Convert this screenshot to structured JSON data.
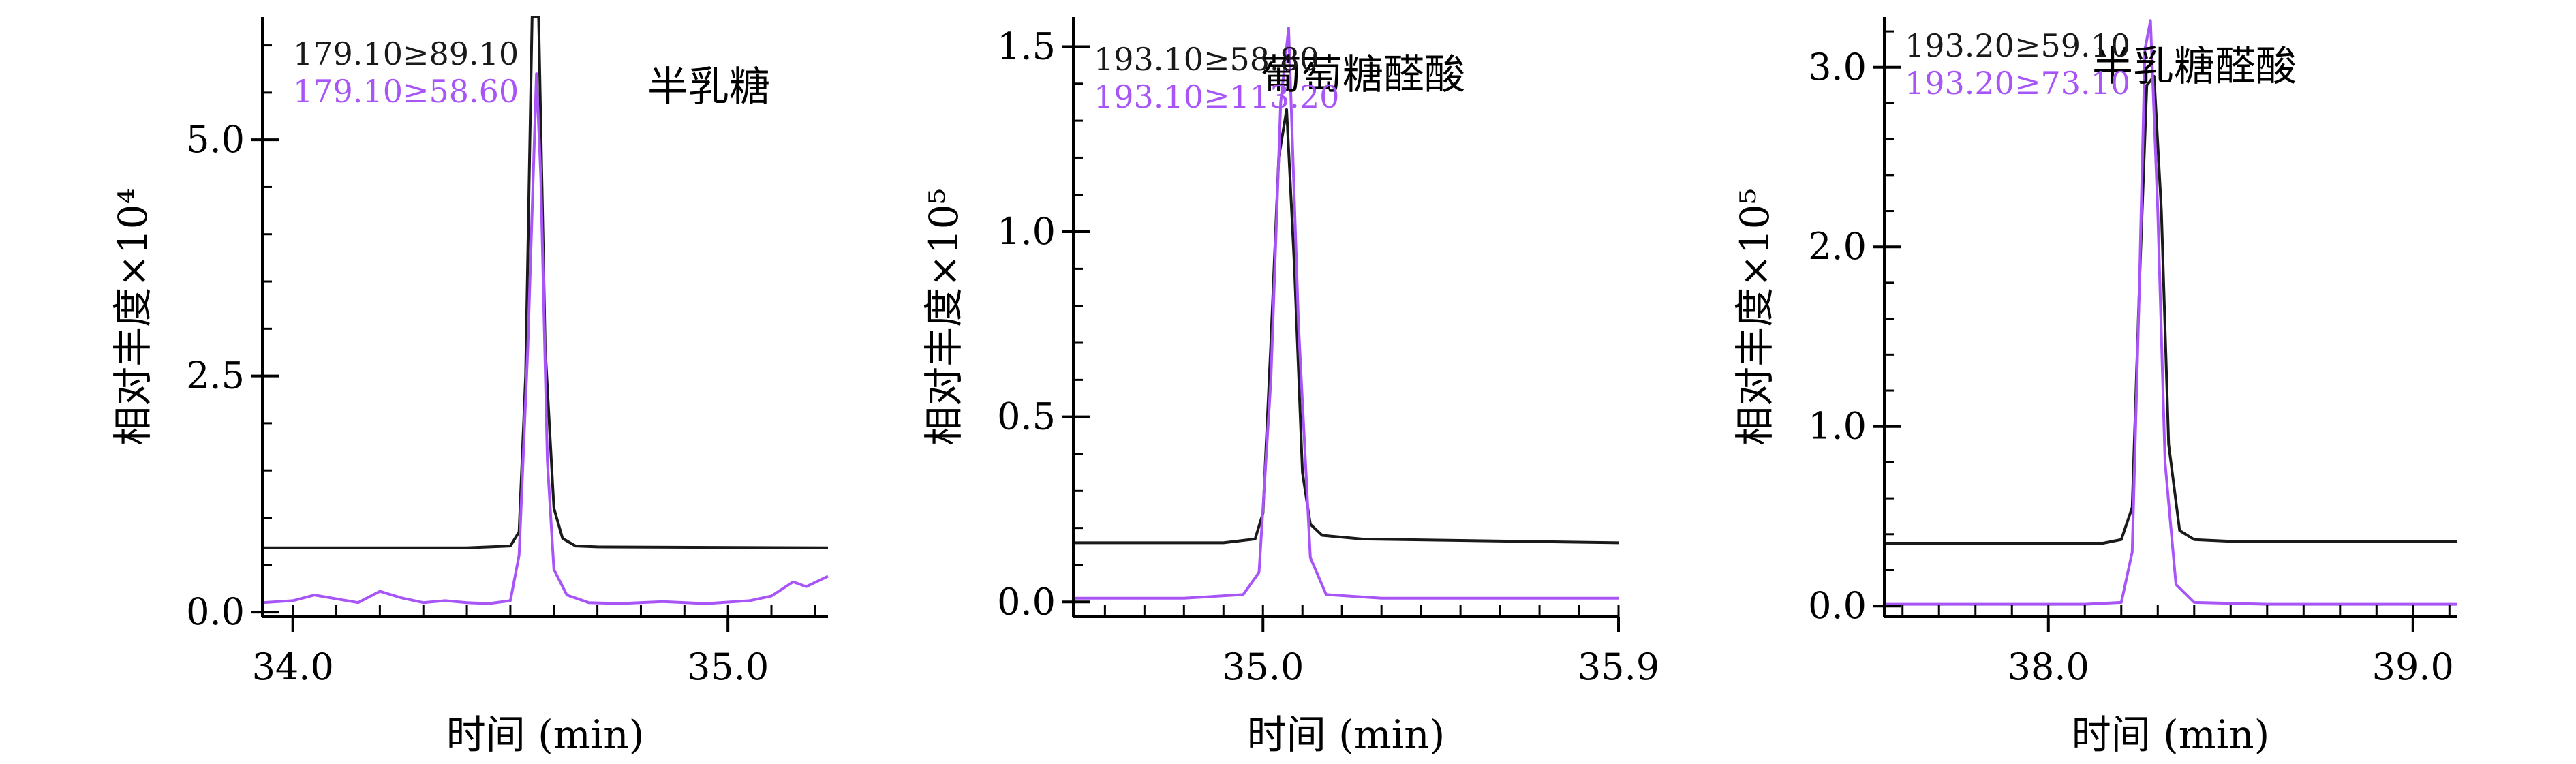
{
  "colors": {
    "series_black": "#1a1a1a",
    "series_violet": "#a855f7",
    "axis": "#000000",
    "background": "#ffffff"
  },
  "chart_data": [
    {
      "type": "line",
      "title": "半乳糖",
      "xlabel": "时间 (min)",
      "ylabel": "相对丰度×10⁴",
      "xlim": [
        33.93,
        35.23
      ],
      "ylim": [
        -0.05,
        6.3
      ],
      "x_ticks": [
        34.0,
        35.0
      ],
      "x_tick_labels": [
        "34.0",
        "35.0"
      ],
      "x_minor_step": 0.1,
      "y_ticks": [
        0.0,
        2.5,
        5.0
      ],
      "y_tick_labels": [
        "0.0",
        "2.5",
        "5.0"
      ],
      "y_minor_step": 0.5,
      "series": [
        {
          "name": "179.10≥89.10",
          "color": "#1a1a1a",
          "x": [
            33.93,
            34.4,
            34.5,
            34.52,
            34.535,
            34.55,
            34.565,
            34.58,
            34.6,
            34.62,
            34.65,
            34.7,
            35.23
          ],
          "y": [
            0.68,
            0.68,
            0.7,
            0.85,
            2.5,
            6.3,
            6.3,
            2.8,
            1.1,
            0.78,
            0.7,
            0.69,
            0.68
          ]
        },
        {
          "name": "179.10≥58.60",
          "color": "#a855f7",
          "x": [
            33.93,
            34.0,
            34.05,
            34.1,
            34.15,
            34.2,
            34.25,
            34.3,
            34.35,
            34.4,
            34.45,
            34.5,
            34.52,
            34.54,
            34.56,
            34.57,
            34.585,
            34.6,
            34.63,
            34.68,
            34.75,
            34.85,
            34.95,
            35.05,
            35.1,
            35.15,
            35.18,
            35.23
          ],
          "y": [
            0.1,
            0.12,
            0.18,
            0.14,
            0.1,
            0.22,
            0.15,
            0.1,
            0.12,
            0.1,
            0.09,
            0.12,
            0.6,
            2.8,
            5.7,
            4.6,
            1.6,
            0.45,
            0.18,
            0.1,
            0.09,
            0.11,
            0.09,
            0.12,
            0.17,
            0.32,
            0.27,
            0.38
          ]
        }
      ]
    },
    {
      "type": "line",
      "title": "葡萄糖醛酸",
      "xlabel": "时间 (min)",
      "ylabel": "相对丰度×10⁵",
      "xlim": [
        34.52,
        35.9
      ],
      "ylim": [
        -0.04,
        1.58
      ],
      "x_ticks": [
        35.0,
        35.9
      ],
      "x_tick_labels": [
        "35.0",
        "35.9"
      ],
      "x_minor_step": 0.1,
      "y_ticks": [
        0.0,
        0.5,
        1.0,
        1.5
      ],
      "y_tick_labels": [
        "0.0",
        "0.5",
        "1.0",
        "1.5"
      ],
      "y_minor_step": 0.1,
      "series": [
        {
          "name": "193.10≥58.80",
          "color": "#1a1a1a",
          "x": [
            34.52,
            34.9,
            34.98,
            35.0,
            35.02,
            35.04,
            35.06,
            35.08,
            35.1,
            35.12,
            35.15,
            35.25,
            35.9
          ],
          "y": [
            0.16,
            0.16,
            0.17,
            0.24,
            0.7,
            1.2,
            1.33,
            0.9,
            0.35,
            0.21,
            0.18,
            0.17,
            0.16
          ]
        },
        {
          "name": "193.10≥113.20",
          "color": "#a855f7",
          "x": [
            34.52,
            34.8,
            34.95,
            34.99,
            35.02,
            35.045,
            35.065,
            35.09,
            35.12,
            35.16,
            35.3,
            35.9
          ],
          "y": [
            0.01,
            0.01,
            0.02,
            0.08,
            0.6,
            1.35,
            1.55,
            0.75,
            0.12,
            0.02,
            0.01,
            0.01
          ]
        }
      ]
    },
    {
      "type": "line",
      "title": "半乳糖醛酸",
      "xlabel": "时间 (min)",
      "ylabel": "相对丰度×10⁵",
      "xlim": [
        37.55,
        39.12
      ],
      "ylim": [
        -0.06,
        3.28
      ],
      "x_ticks": [
        38.0,
        39.0
      ],
      "x_tick_labels": [
        "38.0",
        "39.0"
      ],
      "x_minor_step": 0.1,
      "y_ticks": [
        0.0,
        1.0,
        2.0,
        3.0
      ],
      "y_tick_labels": [
        "0.0",
        "1.0",
        "2.0",
        "3.0"
      ],
      "y_minor_step": 0.2,
      "series": [
        {
          "name": "193.20≥59.10",
          "color": "#1a1a1a",
          "x": [
            37.55,
            38.15,
            38.2,
            38.23,
            38.25,
            38.27,
            38.29,
            38.31,
            38.33,
            38.36,
            38.4,
            38.5,
            39.12
          ],
          "y": [
            0.35,
            0.35,
            0.37,
            0.55,
            1.8,
            2.9,
            2.95,
            2.2,
            0.9,
            0.42,
            0.37,
            0.36,
            0.36
          ]
        },
        {
          "name": "193.20≥73.10",
          "color": "#a855f7",
          "x": [
            37.55,
            38.1,
            38.2,
            38.23,
            38.25,
            38.265,
            38.28,
            38.3,
            38.32,
            38.35,
            38.4,
            38.6,
            39.12
          ],
          "y": [
            0.01,
            0.01,
            0.02,
            0.3,
            1.8,
            3.1,
            3.26,
            2.2,
            0.8,
            0.12,
            0.02,
            0.01,
            0.01
          ]
        }
      ]
    }
  ]
}
